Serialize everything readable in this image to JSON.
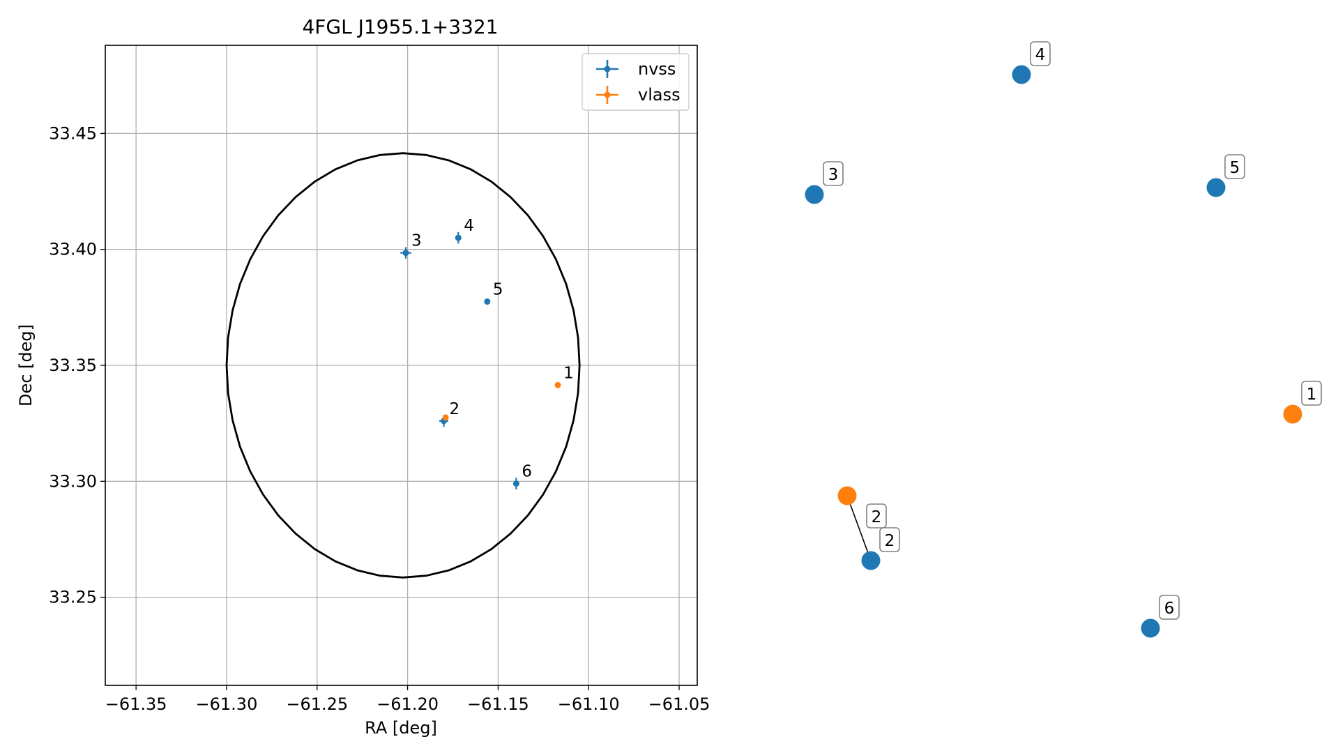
{
  "chart_data": [
    {
      "type": "scatter",
      "title": "4FGL J1955.1+3321",
      "xlabel": "RA [deg]",
      "ylabel": "Dec [deg]",
      "xlim": [
        -61.367,
        -61.04
      ],
      "ylim": [
        33.212,
        33.488
      ],
      "xticks": [
        -61.35,
        -61.3,
        -61.25,
        -61.2,
        -61.15,
        -61.1,
        -61.05
      ],
      "xtick_labels": [
        "−61.35",
        "−61.30",
        "−61.25",
        "−61.20",
        "−61.15",
        "−61.10",
        "−61.05"
      ],
      "yticks": [
        33.25,
        33.3,
        33.35,
        33.4,
        33.45
      ],
      "ytick_labels": [
        "33.25",
        "33.30",
        "33.35",
        "33.40",
        "33.45"
      ],
      "grid": true,
      "legend_position": "top-right",
      "ellipse": {
        "center": [
          -61.2025,
          33.35
        ],
        "ra_semi_axis": 0.0975,
        "dec_semi_axis": 0.0915,
        "color": "#000000"
      },
      "series": [
        {
          "name": "nvss",
          "color": "#1f77b4",
          "points": [
            {
              "label": "2",
              "x": -61.18,
              "y": 33.326,
              "xerr": 0.0025,
              "yerr": 0.0025
            },
            {
              "label": "3",
              "x": -61.201,
              "y": 33.3985,
              "xerr": 0.003,
              "yerr": 0.0025
            },
            {
              "label": "4",
              "x": -61.172,
              "y": 33.405,
              "xerr": 0.001,
              "yerr": 0.0025
            },
            {
              "label": "5",
              "x": -61.156,
              "y": 33.3775,
              "xerr": 0.0005,
              "yerr": 0.0005
            },
            {
              "label": "6",
              "x": -61.14,
              "y": 33.299,
              "xerr": 0.0015,
              "yerr": 0.0025
            }
          ]
        },
        {
          "name": "vlass",
          "color": "#ff7f0e",
          "points": [
            {
              "label": "1",
              "x": -61.117,
              "y": 33.3415,
              "xerr": 0.0003,
              "yerr": 0.0003
            },
            {
              "label": "2",
              "x": -61.179,
              "y": 33.3275,
              "xerr": 0.0003,
              "yerr": 0.0003
            }
          ]
        }
      ]
    },
    {
      "type": "scatter",
      "axes_visible": false,
      "series": [
        {
          "name": "nvss",
          "color": "#1f77b4",
          "labels": [
            "2",
            "3",
            "4",
            "5",
            "6"
          ]
        },
        {
          "name": "vlass",
          "color": "#ff7f0e",
          "labels": [
            "1",
            "2"
          ]
        }
      ],
      "connections": [
        [
          "vlass-2",
          "nvss-2"
        ]
      ]
    }
  ]
}
